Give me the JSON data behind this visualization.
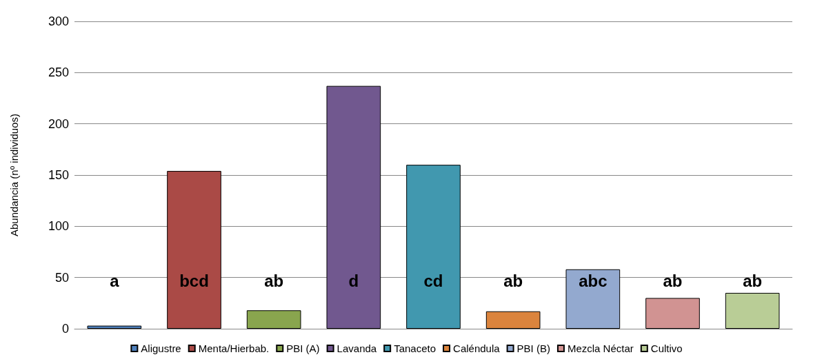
{
  "chart_data": {
    "type": "bar",
    "ylabel": "Abundancia (nº individuos)",
    "categories": [
      null,
      null,
      null,
      null,
      null,
      null,
      null,
      null,
      null
    ],
    "stacked": true,
    "series": [
      {
        "name": "Aligustre",
        "color": "#4f81bd",
        "values": [
          3,
          null,
          null,
          null,
          null,
          null,
          null,
          null,
          null
        ]
      },
      {
        "name": "Menta/Hierbab.",
        "color": "#aa4a46",
        "values": [
          null,
          154,
          null,
          null,
          null,
          null,
          null,
          null,
          null
        ]
      },
      {
        "name": "PBI (A)",
        "color": "#89a54e",
        "values": [
          null,
          null,
          18,
          null,
          null,
          null,
          null,
          null,
          null
        ]
      },
      {
        "name": "Lavanda",
        "color": "#71588f",
        "values": [
          null,
          null,
          null,
          237,
          null,
          null,
          null,
          null,
          null
        ]
      },
      {
        "name": "Tanaceto",
        "color": "#4198af",
        "values": [
          null,
          null,
          null,
          null,
          160,
          null,
          null,
          null,
          null
        ]
      },
      {
        "name": "Caléndula",
        "color": "#db843d",
        "values": [
          null,
          null,
          null,
          null,
          null,
          17,
          null,
          null,
          null
        ]
      },
      {
        "name": "PBI (B)",
        "color": "#93a9cf",
        "values": [
          null,
          null,
          null,
          null,
          null,
          null,
          58,
          null,
          null
        ]
      },
      {
        "name": "Mezcla Néctar",
        "color": "#d19392",
        "values": [
          null,
          null,
          null,
          null,
          null,
          null,
          null,
          30,
          null
        ]
      },
      {
        "name": "Cultivo",
        "color": "#b9cd96",
        "values": [
          null,
          null,
          null,
          null,
          null,
          null,
          null,
          null,
          35
        ]
      }
    ],
    "annotations": [
      "a",
      "bcd",
      "ab",
      "d",
      "cd",
      "ab",
      "abc",
      "ab",
      "ab"
    ],
    "ylim": [
      0,
      300
    ],
    "yticks": [
      0,
      50,
      100,
      150,
      200,
      250,
      300
    ],
    "grid": "y",
    "legend": "bottom"
  }
}
